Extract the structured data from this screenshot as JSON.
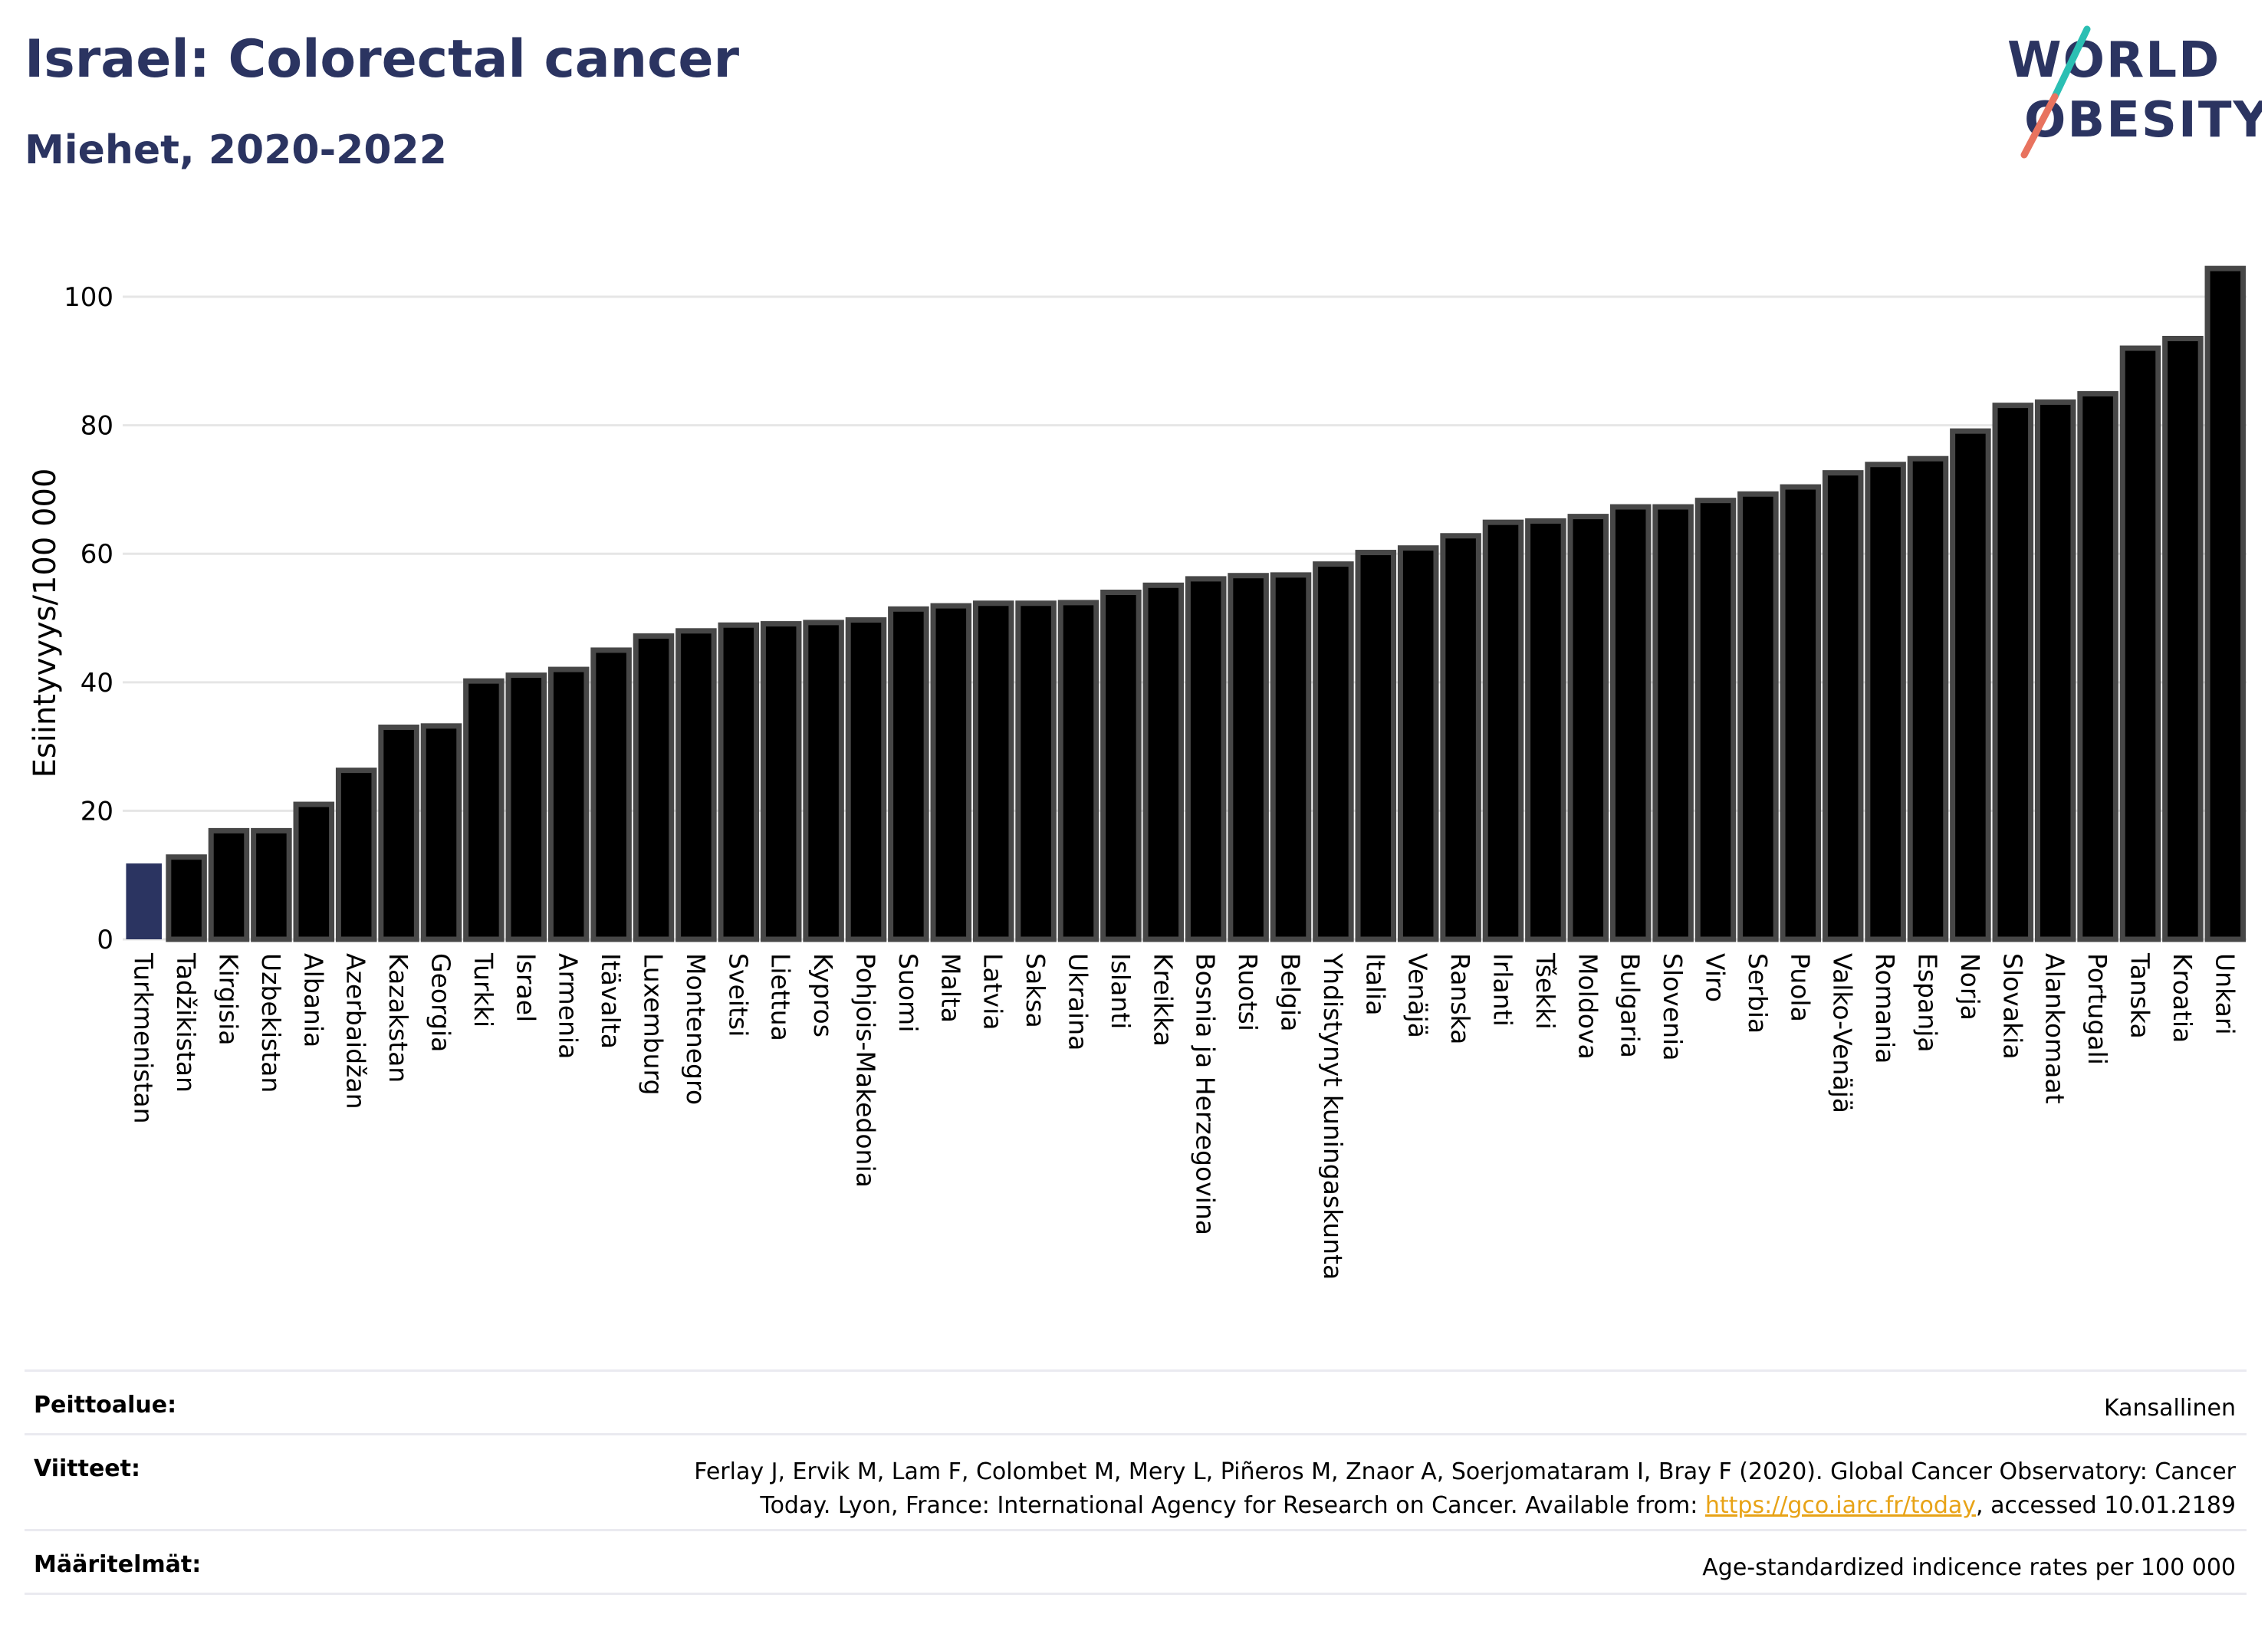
{
  "header": {
    "title": "Israel: Colorectal cancer",
    "subtitle": "Miehet, 2020-2022",
    "logo_line1": "WORLD",
    "logo_line2": "OBESITY"
  },
  "colors": {
    "highlight_bar": "#2b3461",
    "bar": "#000000",
    "bar_border": "#474747",
    "title": "#2b3461",
    "link": "#e8a317"
  },
  "chart_data": {
    "type": "bar",
    "title": "Israel: Colorectal cancer",
    "subtitle": "Miehet, 2020-2022",
    "xlabel": "",
    "ylabel": "Esiintyvyys/100 000",
    "ylim": [
      0,
      108
    ],
    "yticks": [
      0,
      20,
      40,
      60,
      80,
      100
    ],
    "grid": true,
    "highlighted": "Turkmenistan",
    "categories": [
      "Turkmenistan",
      "Tadžikistan",
      "Kirgisia",
      "Uzbekistan",
      "Albania",
      "Azerbaidžan",
      "Kazakstan",
      "Georgia",
      "Turkki",
      "Israel",
      "Armenia",
      "Itävalta",
      "Luxemburg",
      "Montenegro",
      "Sveitsi",
      "Liettua",
      "Kypros",
      "Pohjois-Makedonia",
      "Suomi",
      "Malta",
      "Latvia",
      "Saksa",
      "Ukraina",
      "Islanti",
      "Kreikka",
      "Bosnia ja Herzegovina",
      "Ruotsi",
      "Belgia",
      "Yhdistynyt kuningaskunta",
      "Italia",
      "Venäjä",
      "Ranska",
      "Irlanti",
      "Tšekki",
      "Moldova",
      "Bulgaria",
      "Slovenia",
      "Viro",
      "Serbia",
      "Puola",
      "Valko-Venäjä",
      "Romania",
      "Espanja",
      "Norja",
      "Slovakia",
      "Alankomaat",
      "Portugali",
      "Tanska",
      "Kroatia",
      "Unkari"
    ],
    "values": [
      11.8,
      12.8,
      16.9,
      16.9,
      21.0,
      26.3,
      33.0,
      33.2,
      40.2,
      41.1,
      42.0,
      45.0,
      47.2,
      48.0,
      48.9,
      49.1,
      49.3,
      49.7,
      51.4,
      51.9,
      52.3,
      52.3,
      52.4,
      54.0,
      55.1,
      56.1,
      56.6,
      56.7,
      58.4,
      60.2,
      60.9,
      62.8,
      64.9,
      65.1,
      65.8,
      67.3,
      67.3,
      68.3,
      69.3,
      70.4,
      72.6,
      73.9,
      74.8,
      79.1,
      83.1,
      83.6,
      84.9,
      92.0,
      93.5,
      104.4
    ]
  },
  "info": {
    "coverage_label": "Peittoalue:",
    "coverage_value": "Kansallinen",
    "refs_label": "Viitteet:",
    "refs_text_1": "Ferlay J, Ervik M, Lam F, Colombet M, Mery L, Piñeros M, Znaor A, Soerjomataram I, Bray F (2020). Global Cancer Observatory: Cancer",
    "refs_text_2": "Today. Lyon, France: International Agency for Research on Cancer. Available from: ",
    "refs_link": "https://gco.iarc.fr/today",
    "refs_text_3": ", accessed 10.01.2189",
    "defs_label": "Määritelmät:",
    "defs_value": "Age-standardized indicence rates per 100 000"
  }
}
